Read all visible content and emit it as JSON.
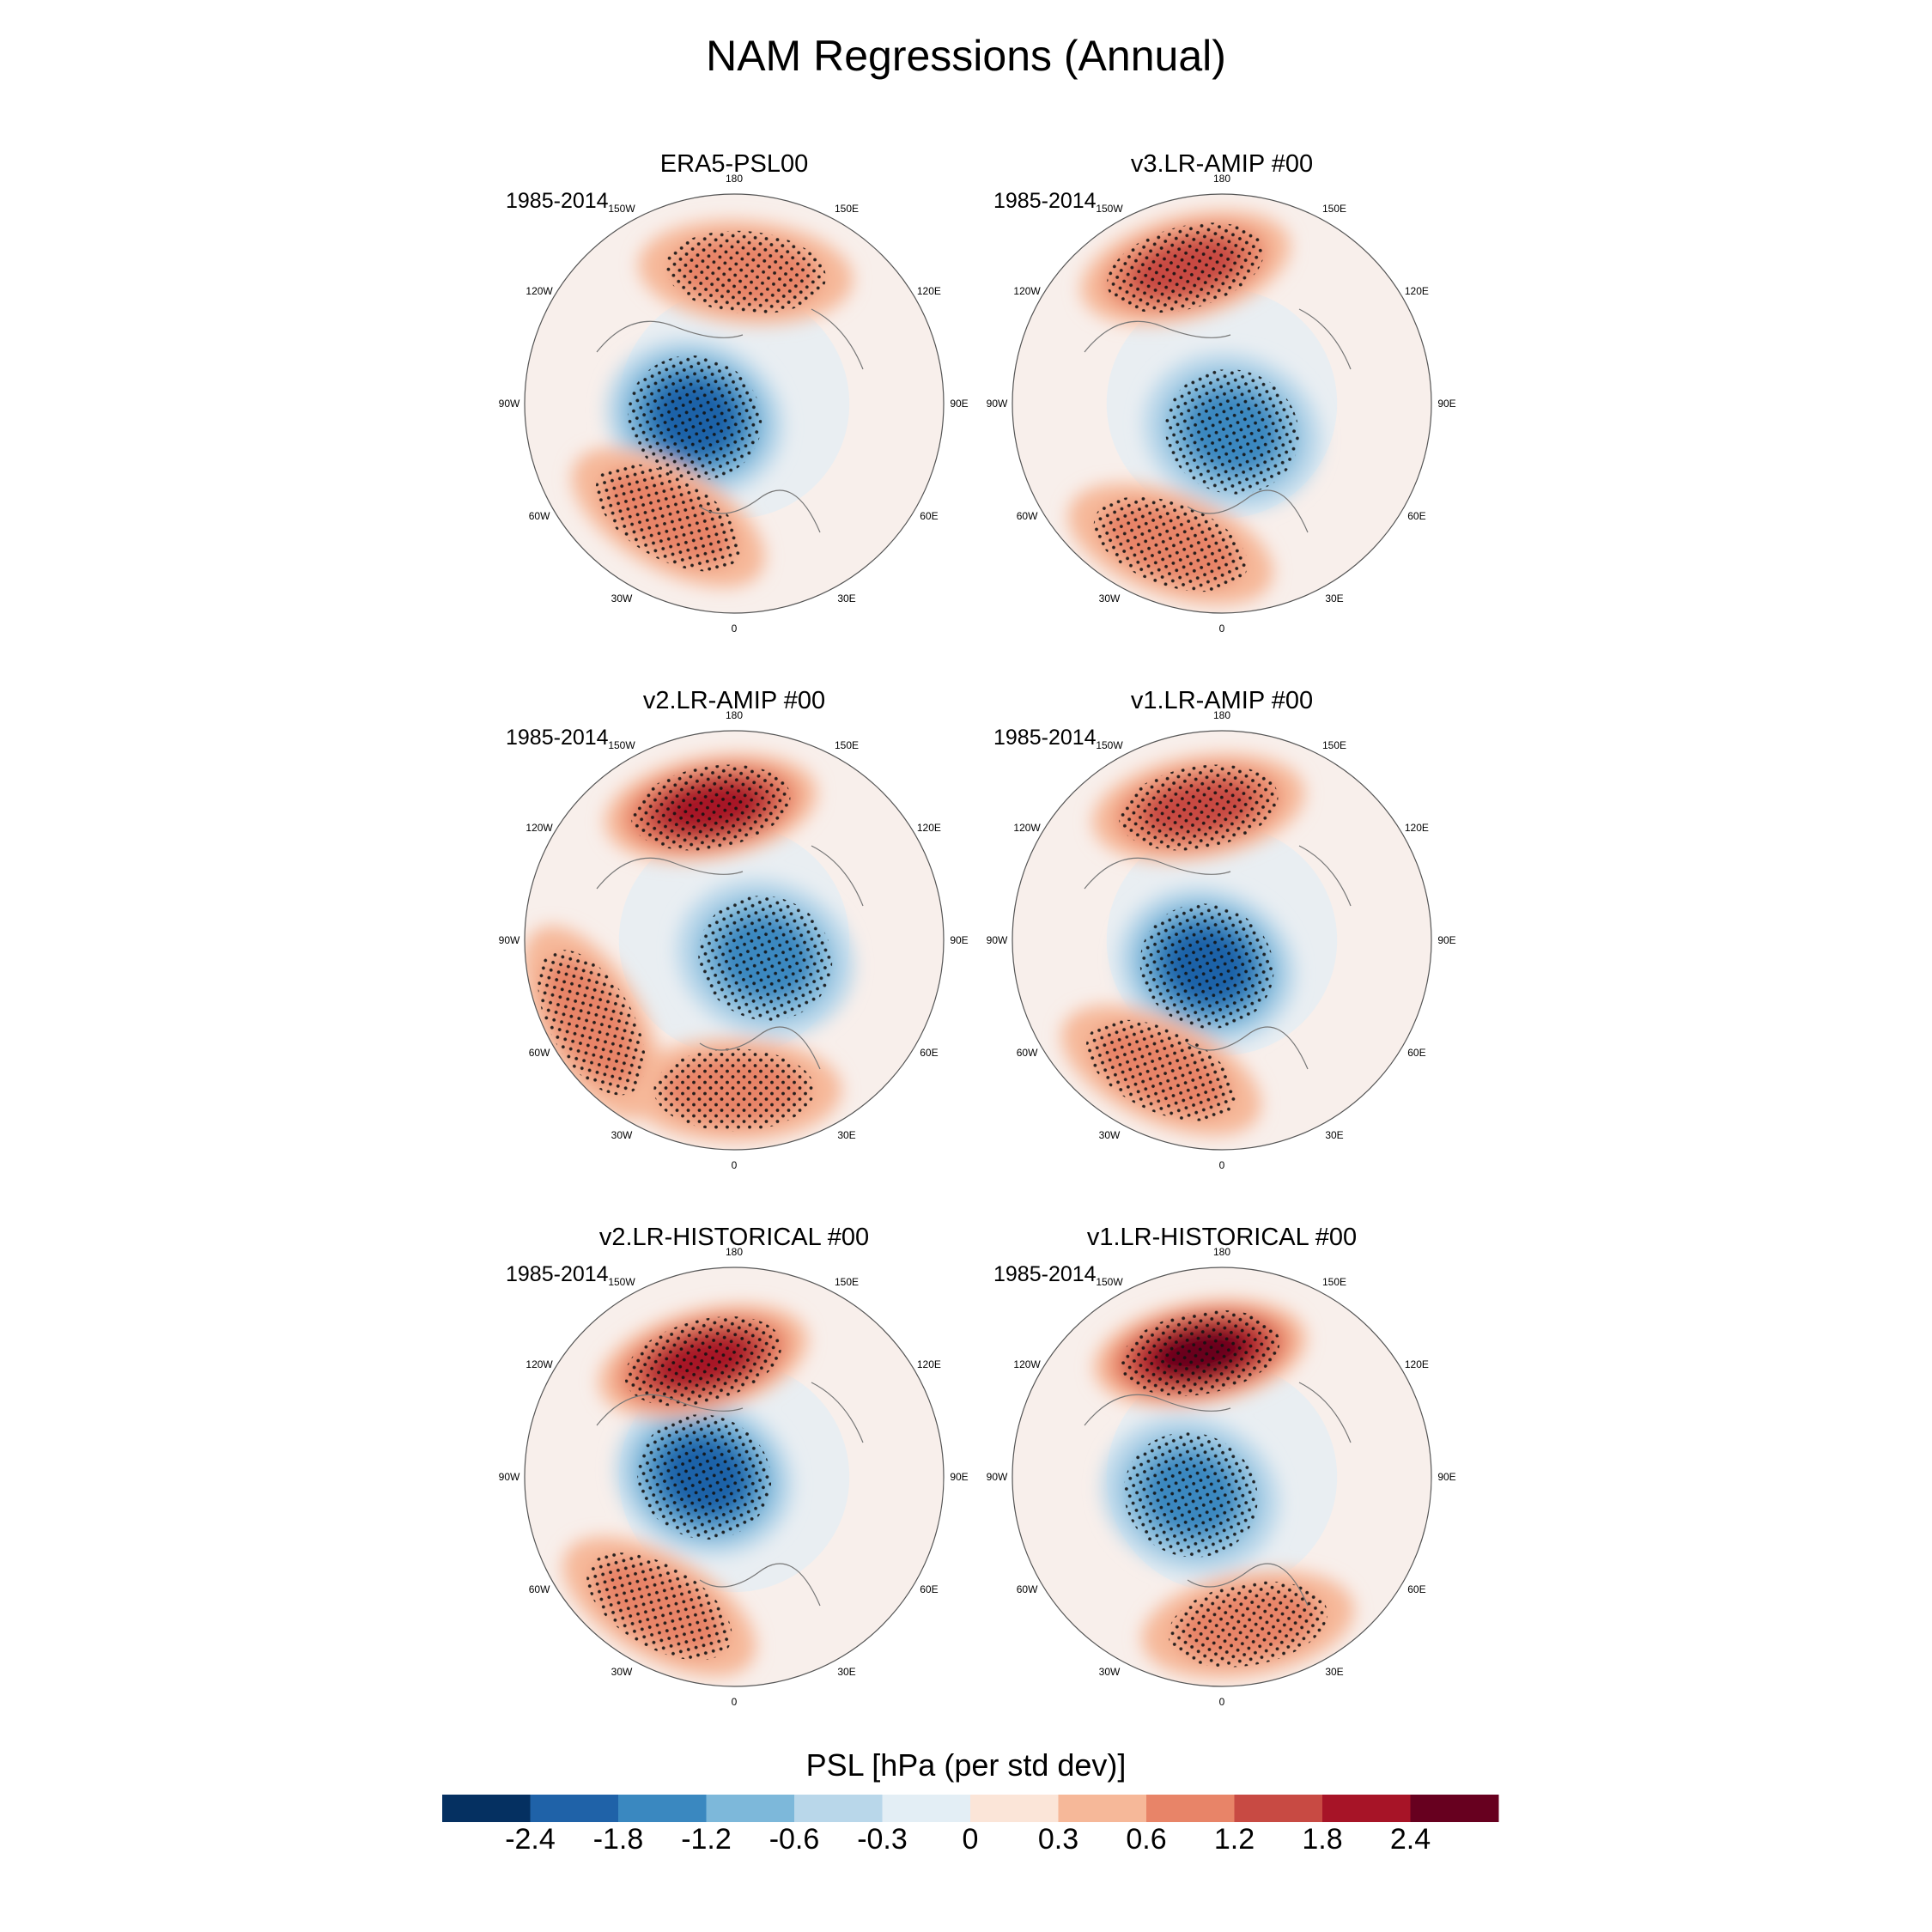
{
  "chart_data": {
    "type": "heatmap",
    "projection": "north-polar-stereographic",
    "title": "NAM Regressions (Annual)",
    "variable": "PSL",
    "colorbar": {
      "title": "PSL [hPa (per std dev)]",
      "levels": [
        -2.4,
        -1.8,
        -1.2,
        -0.6,
        -0.3,
        0,
        0.3,
        0.6,
        1.2,
        1.8,
        2.4
      ],
      "level_labels": [
        "-2.4",
        "-1.8",
        "-1.2",
        "-0.6",
        "-0.3",
        "0",
        "0.3",
        "0.6",
        "1.2",
        "1.8",
        "2.4"
      ],
      "colors": [
        "#053061",
        "#1f62a8",
        "#3a88c0",
        "#7db8da",
        "#b9d7ea",
        "#e3eef5",
        "#fbe5d8",
        "#f6b899",
        "#e88468",
        "#c84a43",
        "#a71427",
        "#67001f"
      ]
    },
    "longitude_labels": [
      "180",
      "150E",
      "120E",
      "90E",
      "60E",
      "30E",
      "0",
      "30W",
      "60W",
      "90W",
      "120W",
      "150W"
    ],
    "panels": [
      {
        "name": "ERA5-PSL00",
        "period": "1985-2014",
        "features": [
          {
            "type": "low",
            "lat": 76,
            "lon": -70,
            "value": -2.3
          },
          {
            "type": "high",
            "lat": 46,
            "lon": -30,
            "value": 1.1
          },
          {
            "type": "high",
            "lat": 46,
            "lon": 175,
            "value": 0.7
          }
        ]
      },
      {
        "name": "v3.LR-AMIP  #00",
        "period": "1985-2014",
        "features": [
          {
            "type": "low",
            "lat": 80,
            "lon": 20,
            "value": -1.5
          },
          {
            "type": "high",
            "lat": 40,
            "lon": -20,
            "value": 1.1
          },
          {
            "type": "high",
            "lat": 43,
            "lon": -165,
            "value": 1.4
          }
        ]
      },
      {
        "name": "v2.LR-AMIP  #00",
        "period": "1985-2014",
        "features": [
          {
            "type": "low",
            "lat": 78,
            "lon": 60,
            "value": -1.3
          },
          {
            "type": "high",
            "lat": 45,
            "lon": -170,
            "value": 2.1
          },
          {
            "type": "high",
            "lat": 40,
            "lon": 0,
            "value": 0.8
          },
          {
            "type": "high",
            "lat": 35,
            "lon": -60,
            "value": 0.8
          }
        ]
      },
      {
        "name": "v1.LR-AMIP  #00",
        "period": "1985-2014",
        "features": [
          {
            "type": "low",
            "lat": 80,
            "lon": -30,
            "value": -1.8
          },
          {
            "type": "high",
            "lat": 45,
            "lon": -170,
            "value": 1.5
          },
          {
            "type": "high",
            "lat": 42,
            "lon": -25,
            "value": 1.1
          }
        ]
      },
      {
        "name": "v2.LR-HISTORICAL  #00",
        "period": "1985-2014",
        "features": [
          {
            "type": "low",
            "lat": 80,
            "lon": -90,
            "value": -1.9
          },
          {
            "type": "high",
            "lat": 50,
            "lon": -165,
            "value": 2.0
          },
          {
            "type": "high",
            "lat": 40,
            "lon": -30,
            "value": 1.1
          }
        ]
      },
      {
        "name": "v1.LR-HISTORICAL  #00",
        "period": "1985-2014",
        "features": [
          {
            "type": "low",
            "lat": 78,
            "lon": -60,
            "value": -1.5
          },
          {
            "type": "high",
            "lat": 48,
            "lon": -170,
            "value": 2.6
          },
          {
            "type": "high",
            "lat": 40,
            "lon": 10,
            "value": 0.8
          }
        ]
      }
    ]
  }
}
